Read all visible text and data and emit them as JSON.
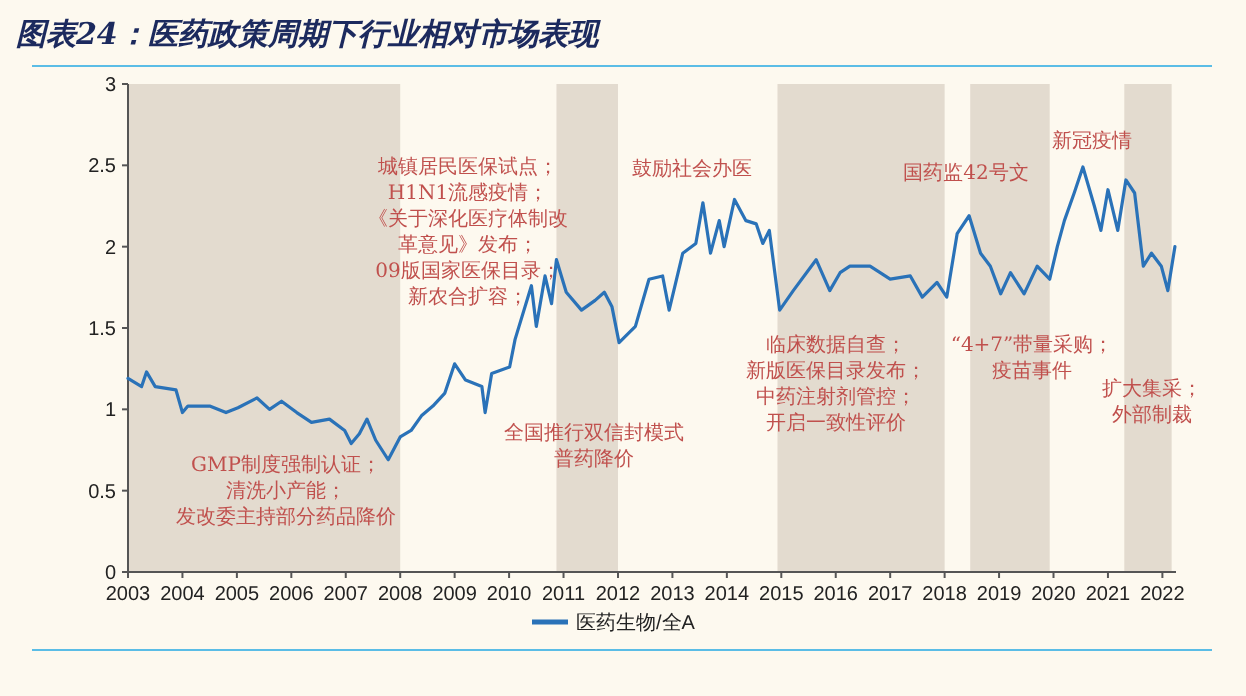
{
  "chart_data": {
    "type": "line",
    "title": "图表24：医药政策周期下行业相对市场表现",
    "xlim": [
      2003,
      2022.25
    ],
    "xticks": [
      2003,
      2004,
      2005,
      2006,
      2007,
      2008,
      2009,
      2010,
      2011,
      2012,
      2013,
      2014,
      2015,
      2016,
      2017,
      2018,
      2019,
      2020,
      2021,
      2022
    ],
    "ylim": [
      0,
      3
    ],
    "yticks": [
      0,
      0.5,
      1,
      1.5,
      2,
      2.5,
      3
    ],
    "grid": false,
    "legend": "bottom",
    "marker": "none",
    "line_style": "solid",
    "series": [
      {
        "name": "医药生物/全A",
        "color": "#2a72b8",
        "x": [
          2003.0,
          2003.25,
          2003.34,
          2003.5,
          2003.88,
          2004.0,
          2004.1,
          2004.5,
          2004.8,
          2005.02,
          2005.37,
          2005.6,
          2005.82,
          2006.1,
          2006.37,
          2006.7,
          2006.98,
          2007.1,
          2007.25,
          2007.39,
          2007.55,
          2007.78,
          2008.0,
          2008.2,
          2008.39,
          2008.6,
          2008.82,
          2009.0,
          2009.2,
          2009.5,
          2009.56,
          2009.68,
          2010.01,
          2010.11,
          2010.41,
          2010.5,
          2010.66,
          2010.78,
          2010.87,
          2011.05,
          2011.33,
          2011.58,
          2011.75,
          2011.89,
          2012.02,
          2012.32,
          2012.57,
          2012.82,
          2012.94,
          2013.19,
          2013.43,
          2013.56,
          2013.7,
          2013.86,
          2013.95,
          2014.14,
          2014.35,
          2014.54,
          2014.66,
          2014.78,
          2014.97,
          2015.22,
          2015.64,
          2015.89,
          2016.08,
          2016.26,
          2016.63,
          2017.0,
          2017.37,
          2017.59,
          2017.86,
          2018.04,
          2018.23,
          2018.45,
          2018.66,
          2018.84,
          2019.03,
          2019.21,
          2019.46,
          2019.7,
          2019.93,
          2020.07,
          2020.2,
          2020.38,
          2020.54,
          2020.75,
          2020.87,
          2021.0,
          2021.18,
          2021.33,
          2021.49,
          2021.65,
          2021.8,
          2021.98,
          2022.1,
          2022.23
        ],
        "values": [
          1.19,
          1.14,
          1.23,
          1.14,
          1.12,
          0.98,
          1.02,
          1.02,
          0.98,
          1.01,
          1.07,
          1.0,
          1.05,
          0.98,
          0.92,
          0.94,
          0.87,
          0.79,
          0.85,
          0.94,
          0.81,
          0.69,
          0.83,
          0.87,
          0.96,
          1.02,
          1.1,
          1.28,
          1.18,
          1.14,
          0.98,
          1.22,
          1.26,
          1.43,
          1.76,
          1.51,
          1.82,
          1.65,
          1.92,
          1.72,
          1.61,
          1.67,
          1.72,
          1.63,
          1.41,
          1.51,
          1.8,
          1.82,
          1.61,
          1.96,
          2.02,
          2.27,
          1.96,
          2.16,
          2.0,
          2.29,
          2.16,
          2.14,
          2.02,
          2.1,
          1.61,
          1.73,
          1.92,
          1.73,
          1.84,
          1.88,
          1.88,
          1.8,
          1.82,
          1.69,
          1.78,
          1.69,
          2.08,
          2.19,
          1.96,
          1.88,
          1.71,
          1.84,
          1.71,
          1.88,
          1.8,
          2.0,
          2.16,
          2.33,
          2.49,
          2.25,
          2.1,
          2.35,
          2.1,
          2.41,
          2.33,
          1.88,
          1.96,
          1.88,
          1.73,
          2.0
        ]
      }
    ],
    "bands": [
      {
        "axis": "x",
        "from": 2003,
        "to": 2008,
        "color": "#e3dbcf"
      },
      {
        "axis": "x",
        "from": 2010.87,
        "to": 2012.0,
        "color": "#e3dbcf"
      },
      {
        "axis": "x",
        "from": 2014.93,
        "to": 2018.0,
        "color": "#e3dbcf"
      },
      {
        "axis": "x",
        "from": 2018.47,
        "to": 2019.93,
        "color": "#e3dbcf"
      },
      {
        "axis": "x",
        "from": 2021.3,
        "to": 2022.17,
        "color": "#e3dbcf"
      }
    ],
    "annotations": [
      "GMP制度强制认证；清洗小产能；发改委主持部分药品降价",
      "城镇居民医保试点；H1N1流感疫情；《关于深化医疗体制改革意见》发布；09版国家医保目录；新农合扩容；",
      "全国推行双信封模式普药降价",
      "鼓励社会办医",
      "临床数据自查；新版医保目录发布；中药注射剂管控；开启一致性评价",
      "国药监42号文",
      "“4+7”带量采购；疫苗事件",
      "新冠疫情",
      "扩大集采；外部制裁"
    ]
  }
}
